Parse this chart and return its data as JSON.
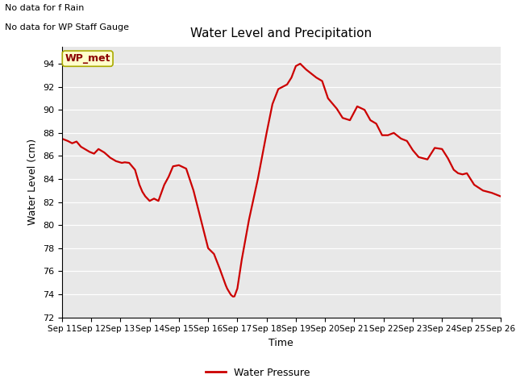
{
  "title": "Water Level and Precipitation",
  "xlabel": "Time",
  "ylabel": "Water Level (cm)",
  "ylim": [
    72,
    95.5
  ],
  "yticks": [
    72,
    74,
    76,
    78,
    80,
    82,
    84,
    86,
    88,
    90,
    92,
    94
  ],
  "line_color": "#cc0000",
  "line_width": 1.6,
  "bg_color": "#e8e8e8",
  "annotation_text1": "No data for f Rain",
  "annotation_text2": "No data for WP Staff Gauge",
  "wp_met_label": "WP_met",
  "legend_label": "Water Pressure",
  "x_days": [
    11,
    12,
    13,
    14,
    15,
    16,
    17,
    18,
    19,
    20,
    21,
    22,
    23,
    24,
    25,
    26
  ],
  "x_ticklabels": [
    "Sep 11",
    "Sep 12",
    "Sep 13",
    "Sep 14",
    "Sep 15",
    "Sep 16",
    "Sep 17",
    "Sep 18",
    "Sep 19",
    "Sep 20",
    "Sep 21",
    "Sep 22",
    "Sep 23",
    "Sep 24",
    "Sep 25",
    "Sep 26"
  ],
  "x_data": [
    11.0,
    11.1,
    11.2,
    11.35,
    11.5,
    11.65,
    11.75,
    11.85,
    11.95,
    12.1,
    12.25,
    12.45,
    12.65,
    12.85,
    13.05,
    13.15,
    13.3,
    13.5,
    13.65,
    13.75,
    13.85,
    14.0,
    14.15,
    14.3,
    14.5,
    14.65,
    14.8,
    15.0,
    15.25,
    15.5,
    15.75,
    16.0,
    16.2,
    16.4,
    16.5,
    16.6,
    16.65,
    16.72,
    16.78,
    16.85,
    16.9,
    17.0,
    17.15,
    17.4,
    17.7,
    18.0,
    18.2,
    18.4,
    18.55,
    18.7,
    18.85,
    19.0,
    19.15,
    19.35,
    19.5,
    19.7,
    19.9,
    20.1,
    20.4,
    20.6,
    20.85,
    21.1,
    21.35,
    21.55,
    21.75,
    21.95,
    22.15,
    22.35,
    22.6,
    22.8,
    23.0,
    23.2,
    23.5,
    23.75,
    24.0,
    24.2,
    24.4,
    24.55,
    24.7,
    24.85,
    25.1,
    25.4,
    25.7,
    25.9,
    26.0
  ],
  "y_data": [
    87.5,
    87.4,
    87.3,
    87.1,
    87.25,
    86.8,
    86.65,
    86.5,
    86.35,
    86.2,
    86.6,
    86.3,
    85.85,
    85.55,
    85.4,
    85.45,
    85.4,
    84.8,
    83.5,
    82.9,
    82.5,
    82.1,
    82.3,
    82.1,
    83.5,
    84.2,
    85.1,
    85.2,
    84.9,
    83.0,
    80.5,
    78.0,
    77.5,
    76.2,
    75.5,
    74.8,
    74.5,
    74.2,
    73.95,
    73.8,
    73.82,
    74.5,
    77.0,
    80.5,
    84.0,
    88.0,
    90.5,
    91.8,
    92.0,
    92.2,
    92.8,
    93.8,
    94.0,
    93.5,
    93.2,
    92.8,
    92.5,
    91.0,
    90.1,
    89.3,
    89.1,
    90.3,
    90.0,
    89.1,
    88.8,
    87.8,
    87.8,
    88.0,
    87.5,
    87.3,
    86.5,
    85.9,
    85.7,
    86.7,
    86.6,
    85.8,
    84.8,
    84.5,
    84.4,
    84.5,
    83.5,
    83.0,
    82.8,
    82.6,
    82.5
  ]
}
